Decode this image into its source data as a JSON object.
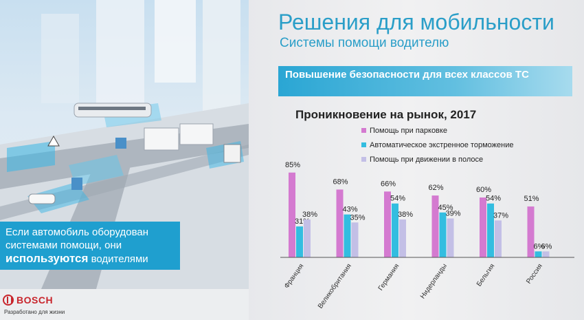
{
  "slide": {
    "title": "Решения для мобильности",
    "subtitle": "Системы помощи водителю",
    "banner": "Повышение безопасности для всех классов ТС",
    "caption_line1": "Если автомобиль оборудован",
    "caption_line2": "системами помощи, они",
    "caption_strong": "используются",
    "caption_tail": " водителями"
  },
  "logo": {
    "name": "BOSCH",
    "tagline": "Разработано для жизни",
    "icon": "bosch-armature-icon",
    "color": "#c8252c"
  },
  "colors": {
    "accent": "#2a9ec8",
    "parking": "#d47ad0",
    "braking": "#33bde0",
    "lane": "#c3bfe6"
  },
  "chart_data": {
    "type": "bar",
    "title": "Проникновение на рынок, 2017",
    "categories": [
      "Франция",
      "Великобритания",
      "Германия",
      "Нидерланды",
      "Бельгия",
      "Россия"
    ],
    "series": [
      {
        "name": "Помощь при парковке",
        "values": [
          85,
          68,
          66,
          62,
          60,
          51
        ]
      },
      {
        "name": "Автоматическое экстренное торможение",
        "values": [
          31,
          43,
          54,
          45,
          54,
          6
        ]
      },
      {
        "name": "Помощь при движении в полосе",
        "values": [
          38,
          35,
          38,
          39,
          37,
          6
        ]
      }
    ],
    "value_suffix": "%",
    "ylim": [
      0,
      100
    ],
    "grid": false,
    "legend": "top"
  }
}
